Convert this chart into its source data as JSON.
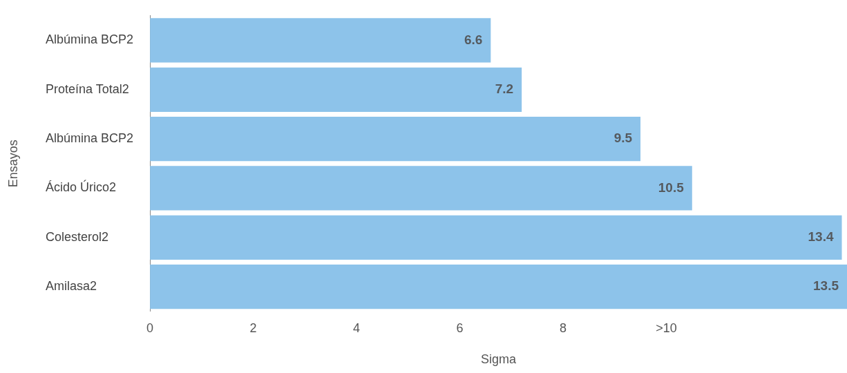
{
  "chart_data": {
    "type": "bar",
    "orientation": "horizontal",
    "xlabel": "Sigma",
    "ylabel": "Ensayos",
    "categories": [
      "Albúmina BCP2",
      "Proteína Total2",
      "Albúmina BCP2",
      "Ácido Úrico2",
      "Colesterol2",
      "Amilasa2"
    ],
    "values": [
      6.6,
      7.2,
      9.5,
      10.5,
      13.4,
      13.5
    ],
    "color": "#8dc3ea",
    "xlim": [
      0,
      13.5
    ],
    "xticks": [
      0,
      2,
      4,
      6,
      8,
      {
        "value": 10,
        "label": ">10"
      }
    ],
    "data_labels": true,
    "grid": false,
    "legend": false
  }
}
